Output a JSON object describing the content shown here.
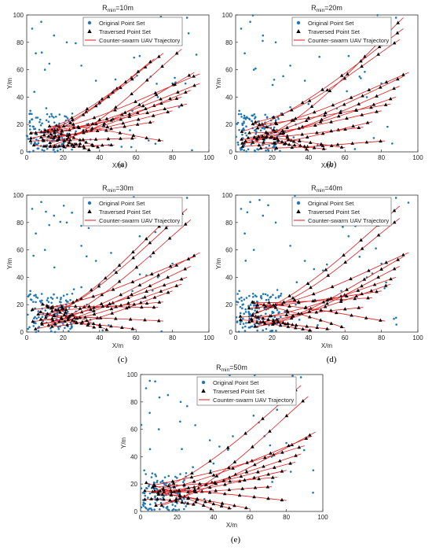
{
  "figure": {
    "captions": [
      "(a)",
      "(b)",
      "(c)",
      "(d)",
      "(e)"
    ]
  },
  "chart_data": [
    {
      "type": "scatter",
      "title_main": "R",
      "title_sub": "min",
      "title_rest": "=10m",
      "xlabel": "X/m",
      "ylabel": "Y/m",
      "xlim": [
        0,
        100
      ],
      "ylim": [
        0,
        100
      ],
      "xticks": [
        "0",
        "20",
        "40",
        "60",
        "80",
        "100"
      ],
      "yticks": [
        "0",
        "20",
        "40",
        "60",
        "80",
        "100"
      ],
      "legend_position": "top-center",
      "series": [
        {
          "name": "Original Point Set",
          "marker": "dot",
          "color": "#1f77b4",
          "x": [
            3,
            5,
            8,
            10,
            15,
            22,
            30,
            38,
            55,
            62,
            68,
            88,
            2,
            6,
            12,
            18,
            25,
            33,
            40,
            48,
            4,
            9,
            14,
            20,
            27,
            35,
            45,
            58,
            72,
            80
          ],
          "y": [
            90,
            72,
            95,
            60,
            85,
            80,
            63,
            52,
            88,
            70,
            55,
            98,
            30,
            25,
            22,
            18,
            28,
            20,
            35,
            45,
            10,
            8,
            12,
            6,
            15,
            9,
            5,
            30,
            40,
            50
          ]
        },
        {
          "name": "Traversed Point Set",
          "marker": "triangle",
          "color": "#000000"
        },
        {
          "name": "Counter-swarm UAV Trajectory",
          "marker": "line",
          "color": "#e31a1c",
          "endpoints": [
            [
              92,
              58
            ],
            [
              95,
              57
            ],
            [
              85,
              75
            ],
            [
              75,
              72
            ],
            [
              70,
              68
            ],
            [
              60,
              55
            ],
            [
              95,
              50
            ],
            [
              90,
              45
            ],
            [
              85,
              40
            ],
            [
              88,
              35
            ],
            [
              80,
              30
            ],
            [
              70,
              22
            ],
            [
              75,
              8
            ],
            [
              60,
              10
            ],
            [
              48,
              5
            ],
            [
              40,
              3
            ],
            [
              35,
              1
            ],
            [
              30,
              6
            ]
          ]
        }
      ]
    },
    {
      "type": "scatter",
      "title_main": "R",
      "title_sub": "min",
      "title_rest": "=20m",
      "xlabel": "X/m",
      "ylabel": "Y/m",
      "xlim": [
        0,
        100
      ],
      "ylim": [
        0,
        100
      ],
      "xticks": [
        "0",
        "20",
        "40",
        "60",
        "80",
        "100"
      ],
      "yticks": [
        "0",
        "20",
        "40",
        "60",
        "80",
        "100"
      ],
      "legend_position": "top-center",
      "series": [
        {
          "name": "Original Point Set",
          "marker": "dot",
          "color": "#1f77b4",
          "x": [
            3,
            5,
            8,
            10,
            15,
            22,
            30,
            38,
            55,
            62,
            68,
            88,
            2,
            6,
            12,
            18,
            25,
            33,
            40,
            48,
            4,
            9,
            14,
            20,
            27,
            35,
            45,
            58,
            72,
            80
          ],
          "y": [
            90,
            72,
            95,
            60,
            85,
            80,
            63,
            52,
            88,
            70,
            55,
            98,
            30,
            25,
            22,
            18,
            28,
            20,
            35,
            45,
            10,
            8,
            12,
            6,
            15,
            9,
            5,
            30,
            40,
            50
          ]
        },
        {
          "name": "Traversed Point Set",
          "marker": "triangle",
          "color": "#000000"
        },
        {
          "name": "Counter-swarm UAV Trajectory",
          "marker": "line",
          "color": "#e31a1c",
          "endpoints": [
            [
              92,
              98
            ],
            [
              92,
              90
            ],
            [
              90,
              82
            ],
            [
              95,
              58
            ],
            [
              92,
              55
            ],
            [
              90,
              48
            ],
            [
              88,
              40
            ],
            [
              85,
              35
            ],
            [
              80,
              30
            ],
            [
              75,
              22
            ],
            [
              70,
              18
            ],
            [
              82,
              8
            ],
            [
              60,
              3
            ],
            [
              50,
              2
            ],
            [
              40,
              1
            ],
            [
              30,
              5
            ]
          ]
        }
      ]
    },
    {
      "type": "scatter",
      "title_main": "R",
      "title_sub": "min",
      "title_rest": "=30m",
      "xlabel": "X/m",
      "ylabel": "Y/m",
      "xlim": [
        0,
        100
      ],
      "ylim": [
        0,
        100
      ],
      "xticks": [
        "0",
        "20",
        "40",
        "60",
        "80",
        "100"
      ],
      "yticks": [
        "0",
        "20",
        "40",
        "60",
        "80",
        "100"
      ],
      "legend_position": "top-center",
      "series": [
        {
          "name": "Original Point Set",
          "marker": "dot",
          "color": "#1f77b4",
          "x": [
            3,
            5,
            8,
            10,
            15,
            22,
            30,
            38,
            55,
            62,
            68,
            88,
            2,
            6,
            12,
            18,
            25,
            33,
            40,
            48,
            4,
            9,
            14,
            20,
            27,
            35,
            45,
            58,
            72,
            80
          ],
          "y": [
            90,
            72,
            95,
            60,
            85,
            80,
            63,
            52,
            88,
            70,
            55,
            98,
            30,
            25,
            22,
            18,
            28,
            20,
            35,
            45,
            10,
            8,
            12,
            6,
            15,
            9,
            5,
            30,
            40,
            50
          ]
        },
        {
          "name": "Traversed Point Set",
          "marker": "triangle",
          "color": "#000000"
        },
        {
          "name": "Counter-swarm UAV Trajectory",
          "marker": "line",
          "color": "#e31a1c",
          "endpoints": [
            [
              88,
              90
            ],
            [
              90,
              82
            ],
            [
              75,
              80
            ],
            [
              95,
              58
            ],
            [
              92,
              55
            ],
            [
              90,
              48
            ],
            [
              88,
              40
            ],
            [
              85,
              35
            ],
            [
              80,
              30
            ],
            [
              75,
              22
            ],
            [
              72,
              18
            ],
            [
              75,
              8
            ],
            [
              60,
              2
            ],
            [
              45,
              1
            ],
            [
              38,
              3
            ],
            [
              28,
              6
            ]
          ]
        }
      ]
    },
    {
      "type": "scatter",
      "title_main": "R",
      "title_sub": "min",
      "title_rest": "=40m",
      "xlabel": "X/m",
      "ylabel": "Y/m",
      "xlim": [
        0,
        100
      ],
      "ylim": [
        0,
        100
      ],
      "xticks": [
        "0",
        "20",
        "40",
        "60",
        "80",
        "100"
      ],
      "yticks": [
        "0",
        "20",
        "40",
        "60",
        "80",
        "100"
      ],
      "legend_position": "top-center",
      "series": [
        {
          "name": "Original Point Set",
          "marker": "dot",
          "color": "#1f77b4",
          "x": [
            3,
            5,
            8,
            10,
            15,
            22,
            30,
            38,
            55,
            62,
            68,
            88,
            2,
            6,
            12,
            18,
            25,
            33,
            40,
            48,
            4,
            9,
            14,
            20,
            27,
            35,
            45,
            58,
            72,
            80
          ],
          "y": [
            90,
            72,
            95,
            60,
            85,
            80,
            63,
            52,
            88,
            70,
            55,
            98,
            30,
            25,
            22,
            18,
            28,
            20,
            35,
            45,
            10,
            8,
            12,
            6,
            15,
            9,
            5,
            30,
            40,
            50
          ]
        },
        {
          "name": "Traversed Point Set",
          "marker": "triangle",
          "color": "#000000"
        },
        {
          "name": "Counter-swarm UAV Trajectory",
          "marker": "line",
          "color": "#e31a1c",
          "endpoints": [
            [
              90,
              92
            ],
            [
              90,
              83
            ],
            [
              95,
              58
            ],
            [
              92,
              55
            ],
            [
              90,
              48
            ],
            [
              88,
              40
            ],
            [
              85,
              35
            ],
            [
              80,
              30
            ],
            [
              75,
              25
            ],
            [
              70,
              18
            ],
            [
              82,
              8
            ],
            [
              60,
              3
            ],
            [
              52,
              2
            ],
            [
              42,
              1
            ],
            [
              32,
              5
            ]
          ]
        }
      ]
    },
    {
      "type": "scatter",
      "title_main": "R",
      "title_sub": "min",
      "title_rest": "=50m",
      "xlabel": "X/m",
      "ylabel": "Y/m",
      "xlim": [
        0,
        100
      ],
      "ylim": [
        0,
        100
      ],
      "xticks": [
        "0",
        "20",
        "40",
        "60",
        "80",
        "100"
      ],
      "yticks": [
        "0",
        "20",
        "40",
        "60",
        "80",
        "100"
      ],
      "legend_position": "top-center",
      "series": [
        {
          "name": "Original Point Set",
          "marker": "dot",
          "color": "#1f77b4",
          "x": [
            3,
            5,
            8,
            10,
            15,
            22,
            30,
            38,
            55,
            62,
            68,
            88,
            2,
            6,
            12,
            18,
            25,
            33,
            40,
            48,
            4,
            9,
            14,
            20,
            27,
            35,
            45,
            58,
            72,
            80
          ],
          "y": [
            90,
            72,
            95,
            60,
            85,
            80,
            63,
            52,
            88,
            70,
            55,
            98,
            30,
            25,
            22,
            18,
            28,
            20,
            35,
            45,
            10,
            8,
            12,
            6,
            15,
            9,
            5,
            30,
            40,
            50
          ]
        },
        {
          "name": "Traversed Point Set",
          "marker": "triangle",
          "color": "#000000"
        },
        {
          "name": "Counter-swarm UAV Trajectory",
          "marker": "line",
          "color": "#e31a1c",
          "endpoints": [
            [
              88,
              92
            ],
            [
              92,
              84
            ],
            [
              96,
              58
            ],
            [
              94,
              55
            ],
            [
              90,
              48
            ],
            [
              88,
              42
            ],
            [
              85,
              36
            ],
            [
              80,
              30
            ],
            [
              75,
              25
            ],
            [
              72,
              18
            ],
            [
              80,
              8
            ],
            [
              60,
              2
            ],
            [
              50,
              2
            ],
            [
              40,
              1
            ],
            [
              30,
              5
            ]
          ]
        }
      ]
    }
  ]
}
